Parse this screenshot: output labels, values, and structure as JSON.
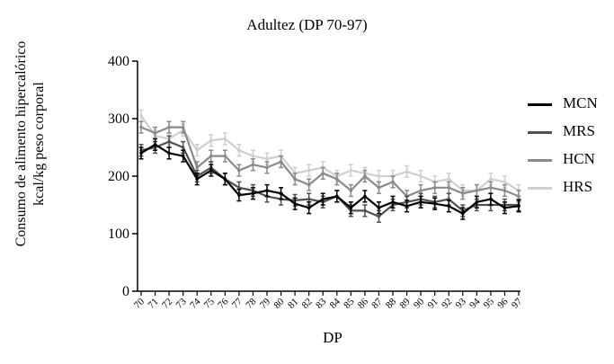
{
  "chart_data": {
    "type": "line",
    "title": "Adultez  (DP 70-97)",
    "xlabel": "DP",
    "ylabel_lines": [
      "Consumo de alimento  hipercalórico",
      "kcal/kg peso corporal"
    ],
    "ylim": [
      0,
      400
    ],
    "yticks": [
      0,
      100,
      200,
      300,
      400
    ],
    "x": [
      70,
      71,
      72,
      73,
      74,
      75,
      76,
      77,
      78,
      79,
      80,
      81,
      82,
      83,
      84,
      85,
      86,
      87,
      88,
      89,
      90,
      91,
      92,
      93,
      94,
      95,
      96,
      97
    ],
    "legend_position": "right",
    "series": [
      {
        "name": "MCN",
        "color": "#000000",
        "values": [
          240,
          255,
          240,
          235,
          195,
          210,
          195,
          167,
          170,
          175,
          170,
          152,
          145,
          160,
          165,
          145,
          165,
          145,
          155,
          148,
          155,
          152,
          148,
          135,
          155,
          160,
          145,
          148
        ]
      },
      {
        "name": "MRS",
        "color": "#505050",
        "values": [
          245,
          250,
          260,
          250,
          200,
          215,
          195,
          180,
          175,
          165,
          160,
          158,
          160,
          155,
          165,
          140,
          140,
          130,
          150,
          155,
          160,
          155,
          160,
          140,
          150,
          150,
          150,
          150
        ]
      },
      {
        "name": "HCN",
        "color": "#8a8a8a",
        "values": [
          285,
          275,
          285,
          285,
          215,
          235,
          235,
          210,
          220,
          215,
          225,
          195,
          185,
          205,
          195,
          175,
          200,
          180,
          190,
          165,
          175,
          180,
          180,
          170,
          175,
          180,
          175,
          165
        ]
      },
      {
        "name": "HRS",
        "color": "#cfcfcf",
        "values": [
          305,
          270,
          265,
          280,
          245,
          262,
          265,
          245,
          235,
          230,
          235,
          205,
          210,
          215,
          200,
          210,
          205,
          200,
          200,
          208,
          200,
          190,
          195,
          175,
          175,
          195,
          190,
          175
        ]
      }
    ],
    "error_bar_size": 10
  }
}
